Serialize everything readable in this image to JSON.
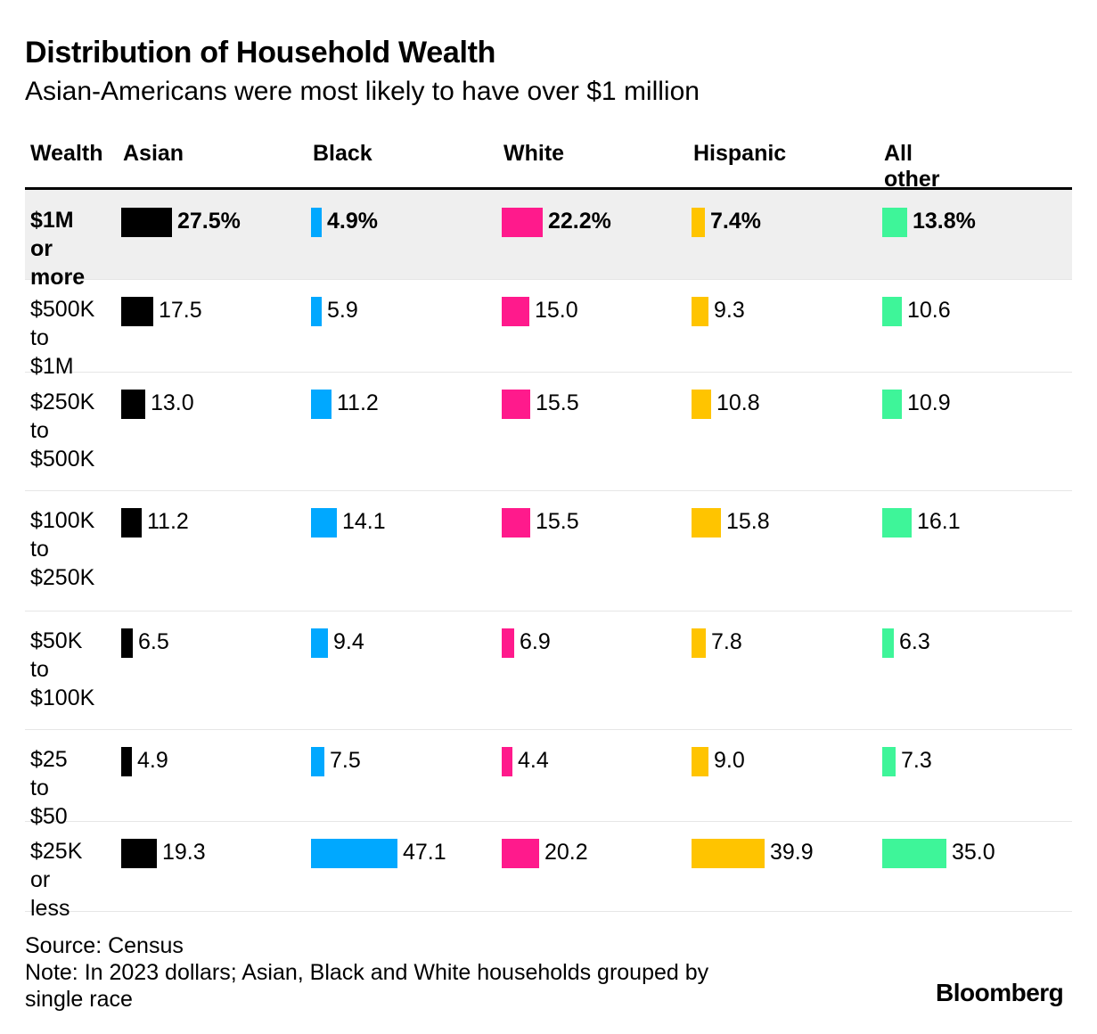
{
  "chart_data": {
    "type": "table",
    "title": "Distribution of Household Wealth",
    "subtitle": "Asian-Americans were most likely to have over $1 million",
    "row_header": "Wealth",
    "series": [
      {
        "name": "Asian",
        "color": "#000000",
        "values": [
          27.5,
          17.5,
          13.0,
          11.2,
          6.5,
          4.9,
          19.3
        ]
      },
      {
        "name": "Black",
        "color": "#00a8ff",
        "values": [
          4.9,
          5.9,
          11.2,
          14.1,
          9.4,
          7.5,
          47.1
        ]
      },
      {
        "name": "White",
        "color": "#ff1a8c",
        "values": [
          22.2,
          15.0,
          15.5,
          15.5,
          6.9,
          4.4,
          20.2
        ]
      },
      {
        "name": "Hispanic",
        "color": "#ffc400",
        "values": [
          7.4,
          9.3,
          10.8,
          15.8,
          7.8,
          9.0,
          39.9
        ]
      },
      {
        "name": "All other",
        "color": "#3ef599",
        "values": [
          13.8,
          10.6,
          10.9,
          16.1,
          6.3,
          7.3,
          35.0
        ]
      }
    ],
    "categories": [
      [
        "$1M or",
        "more"
      ],
      [
        "$500K",
        "to $1M"
      ],
      [
        "$250K",
        "to",
        "$500K"
      ],
      [
        "$100K",
        "to",
        "$250K"
      ],
      [
        "$50K",
        "to",
        "$100K"
      ],
      [
        "$25 to",
        "$50"
      ],
      [
        "$25K",
        "or less"
      ]
    ],
    "value_labels": [
      [
        "27.5%",
        "4.9%",
        "22.2%",
        "7.4%",
        "13.8%"
      ],
      [
        "17.5",
        "5.9",
        "15.0",
        "9.3",
        "10.6"
      ],
      [
        "13.0",
        "11.2",
        "15.5",
        "10.8",
        "10.9"
      ],
      [
        "11.2",
        "14.1",
        "15.5",
        "15.8",
        "16.1"
      ],
      [
        "6.5",
        "9.4",
        "6.9",
        "7.8",
        "6.3"
      ],
      [
        "4.9",
        "7.5",
        "4.4",
        "9.0",
        "7.3"
      ],
      [
        "19.3",
        "47.1",
        "20.2",
        "39.9",
        "35.0"
      ]
    ],
    "highlight_row": 0
  },
  "footer": {
    "source": "Source: Census",
    "note_line1": "Note: In 2023 dollars; Asian, Black and White households grouped by",
    "note_line2": "single race",
    "brand": "Bloomberg"
  }
}
